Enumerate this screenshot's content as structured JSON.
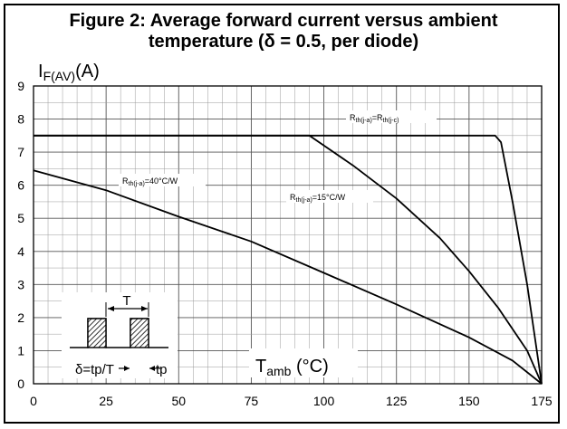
{
  "chart_data": {
    "type": "line",
    "title_line1": "Figure 2: Average forward current versus ambient",
    "title_line2": "temperature (δ = 0.5, per diode)",
    "ylabel_main": "I",
    "ylabel_sub": "F(AV)",
    "ylabel_unit": "(A)",
    "xlabel_main": "T",
    "xlabel_sub": "amb",
    "xlabel_unit": "(°C)",
    "xlim": [
      0,
      175
    ],
    "ylim": [
      0,
      9
    ],
    "xticks": [
      "0",
      "25",
      "50",
      "75",
      "100",
      "125",
      "150",
      "175"
    ],
    "yticks": [
      "0",
      "1",
      "2",
      "3",
      "4",
      "5",
      "6",
      "7",
      "8",
      "9"
    ],
    "grid": true,
    "series": [
      {
        "name": "Rth(j-a)=Rth(j-c)",
        "x": [
          0,
          159,
          161,
          165,
          170,
          175
        ],
        "y": [
          7.5,
          7.5,
          7.3,
          5.5,
          3.0,
          0
        ]
      },
      {
        "name": "Rth(j-a)=15°C/W",
        "x": [
          0,
          95,
          110,
          125,
          140,
          150,
          160,
          170,
          175
        ],
        "y": [
          7.5,
          7.5,
          6.6,
          5.6,
          4.4,
          3.4,
          2.3,
          1.0,
          0
        ]
      },
      {
        "name": "Rth(j-a)=40°C/W",
        "x": [
          0,
          25,
          50,
          75,
          100,
          125,
          150,
          165,
          175
        ],
        "y": [
          6.45,
          5.85,
          5.05,
          4.3,
          3.35,
          2.4,
          1.4,
          0.7,
          0
        ]
      }
    ],
    "annotations": {
      "label_jc": "Rth(j-a)=Rth(j-c)",
      "label_15": "Rth(j-a)=15°C/W",
      "label_40": "Rth(j-a)=40°C/W",
      "pulse_T": "T",
      "pulse_delta": "δ=tp/T",
      "pulse_tp": "tp"
    }
  }
}
